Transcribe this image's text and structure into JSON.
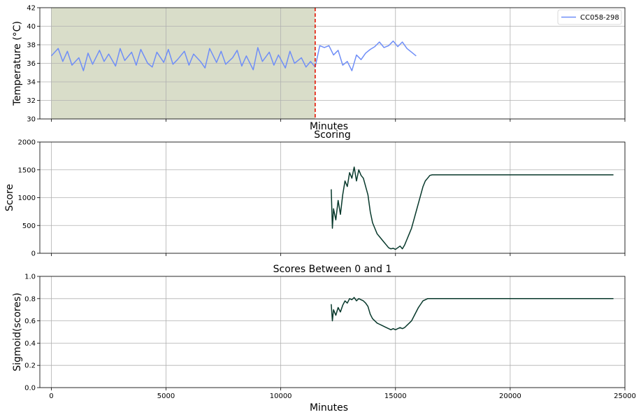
{
  "colors": {
    "temperature": "#6f8ef7",
    "score": "#07382b",
    "shade": "#d9ddc9",
    "cutoff": "#e52b1a",
    "grid": "#b0b0b0"
  },
  "chart_data": [
    {
      "type": "line",
      "title": "",
      "xlabel": "Minutes",
      "ylabel": "Temperature (°C)",
      "xlim": [
        -500,
        25000
      ],
      "ylim": [
        30,
        42
      ],
      "xticks": [],
      "yticks": [
        "30",
        "32",
        "34",
        "36",
        "38",
        "40",
        "42"
      ],
      "grid": true,
      "legend_position": "top-right",
      "shaded_region": {
        "x": [
          0,
          11500
        ]
      },
      "vline": {
        "x": 11500,
        "style": "dashed"
      },
      "series": [
        {
          "name": "CC058-298",
          "x": [
            0,
            300,
            500,
            700,
            900,
            1200,
            1400,
            1600,
            1800,
            2100,
            2300,
            2500,
            2800,
            3000,
            3200,
            3500,
            3700,
            3900,
            4200,
            4400,
            4600,
            4900,
            5100,
            5300,
            5500,
            5800,
            6000,
            6200,
            6500,
            6700,
            6900,
            7200,
            7400,
            7600,
            7900,
            8100,
            8300,
            8500,
            8800,
            9000,
            9200,
            9500,
            9700,
            9900,
            10200,
            10400,
            10600,
            10900,
            11100,
            11300,
            11500,
            11700,
            11900,
            12100,
            12300,
            12500,
            12700,
            12900,
            13100,
            13300,
            13500,
            13700,
            13900,
            14100,
            14300,
            14500,
            14700,
            14900,
            15100,
            15300,
            15500,
            15700,
            15900
          ],
          "values": [
            36.8,
            37.6,
            36.2,
            37.3,
            35.8,
            36.6,
            35.2,
            37.1,
            35.9,
            37.4,
            36.2,
            37.0,
            35.7,
            37.6,
            36.3,
            37.2,
            35.8,
            37.5,
            36.0,
            35.6,
            37.2,
            36.1,
            37.5,
            35.9,
            36.4,
            37.3,
            35.8,
            37.0,
            36.2,
            35.5,
            37.6,
            36.1,
            37.3,
            35.9,
            36.6,
            37.4,
            35.7,
            36.8,
            35.3,
            37.7,
            36.2,
            37.2,
            35.8,
            36.9,
            35.5,
            37.3,
            36.0,
            36.6,
            35.6,
            36.2,
            35.6,
            37.9,
            37.7,
            37.9,
            36.9,
            37.4,
            35.8,
            36.2,
            35.2,
            36.9,
            36.4,
            37.1,
            37.5,
            37.8,
            38.3,
            37.7,
            37.9,
            38.4,
            37.8,
            38.3,
            37.6,
            37.2,
            36.8
          ]
        }
      ]
    },
    {
      "type": "line",
      "title": "Scoring",
      "xlabel": "",
      "ylabel": "Score",
      "xlim": [
        -500,
        25000
      ],
      "ylim": [
        0,
        2000
      ],
      "xticks": [],
      "yticks": [
        "0",
        "500",
        "1000",
        "1500",
        "2000"
      ],
      "grid": true,
      "series": [
        {
          "x": [
            12200,
            12250,
            12300,
            12400,
            12500,
            12600,
            12700,
            12800,
            12900,
            13000,
            13100,
            13200,
            13300,
            13400,
            13500,
            13600,
            13700,
            13800,
            13900,
            14000,
            14100,
            14200,
            14300,
            14400,
            14500,
            14600,
            14700,
            14800,
            14900,
            15000,
            15100,
            15200,
            15300,
            15400,
            15500,
            15600,
            15700,
            15800,
            15900,
            16000,
            16100,
            16200,
            16300,
            16400,
            16500,
            16600,
            24500
          ],
          "values": [
            1150,
            450,
            800,
            600,
            950,
            700,
            1050,
            1300,
            1200,
            1450,
            1350,
            1550,
            1300,
            1500,
            1400,
            1350,
            1200,
            1050,
            750,
            550,
            450,
            350,
            300,
            250,
            200,
            150,
            100,
            80,
            90,
            70,
            100,
            130,
            80,
            150,
            250,
            350,
            450,
            600,
            750,
            900,
            1050,
            1200,
            1300,
            1350,
            1400,
            1410,
            1410
          ]
        }
      ]
    },
    {
      "type": "line",
      "title": "Scores Between 0 and 1",
      "xlabel": "Minutes",
      "ylabel": "Sigmoid(scores)",
      "xlim": [
        -500,
        25000
      ],
      "ylim": [
        0,
        1
      ],
      "xticks": [
        "0",
        "5000",
        "10000",
        "15000",
        "20000",
        "25000"
      ],
      "yticks": [
        "0.0",
        "0.2",
        "0.4",
        "0.6",
        "0.8",
        "1.0"
      ],
      "grid": true,
      "series": [
        {
          "x": [
            12200,
            12250,
            12300,
            12400,
            12500,
            12600,
            12700,
            12800,
            12900,
            13000,
            13100,
            13200,
            13300,
            13400,
            13500,
            13600,
            13700,
            13800,
            13900,
            14000,
            14100,
            14200,
            14300,
            14400,
            14500,
            14600,
            14700,
            14800,
            14900,
            15000,
            15100,
            15200,
            15300,
            15400,
            15500,
            15600,
            15700,
            15800,
            15900,
            16000,
            16100,
            16200,
            16300,
            16400,
            16500,
            16600,
            24500
          ],
          "values": [
            0.75,
            0.6,
            0.7,
            0.65,
            0.72,
            0.68,
            0.74,
            0.78,
            0.76,
            0.8,
            0.79,
            0.81,
            0.78,
            0.8,
            0.79,
            0.78,
            0.76,
            0.73,
            0.66,
            0.62,
            0.6,
            0.58,
            0.57,
            0.56,
            0.55,
            0.54,
            0.53,
            0.52,
            0.53,
            0.52,
            0.53,
            0.54,
            0.53,
            0.54,
            0.56,
            0.58,
            0.6,
            0.64,
            0.68,
            0.72,
            0.75,
            0.78,
            0.79,
            0.8,
            0.8,
            0.8,
            0.8
          ]
        }
      ]
    }
  ]
}
